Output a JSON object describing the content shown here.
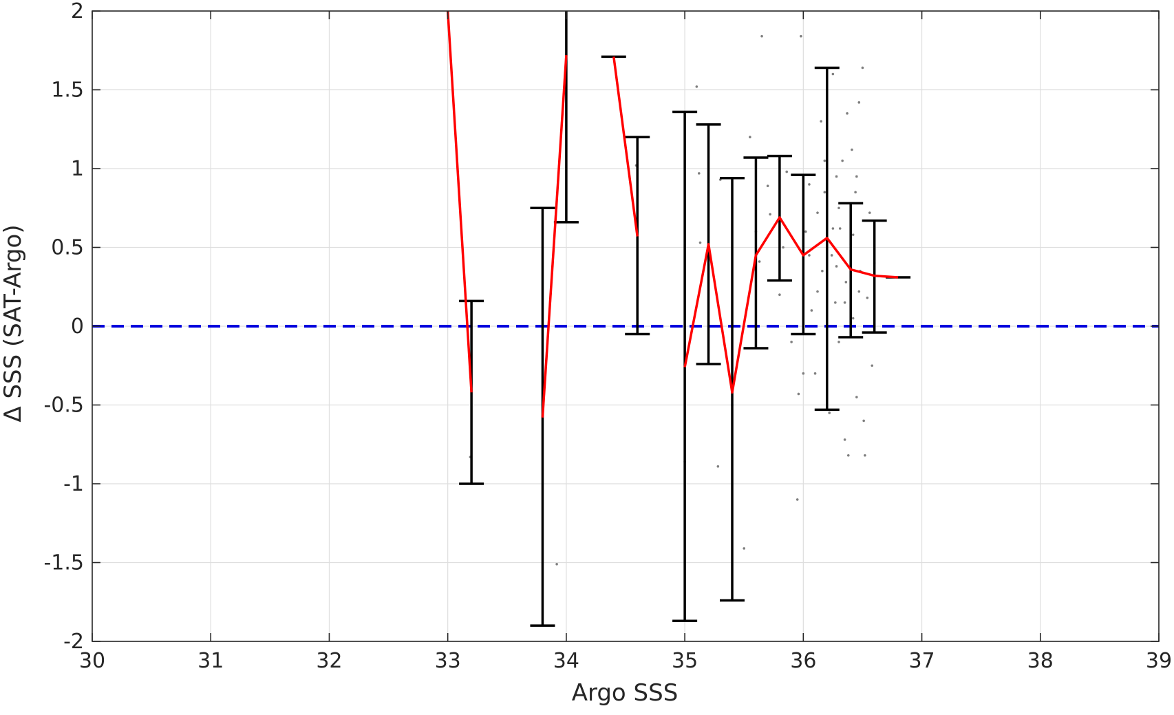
{
  "chart_data": {
    "type": "line",
    "title": "",
    "xlabel": "Argo SSS",
    "ylabel": "Δ SSS (SAT-Argo)",
    "xlim": [
      30,
      39
    ],
    "ylim": [
      -2,
      2
    ],
    "xticks": [
      30,
      31,
      32,
      33,
      34,
      35,
      36,
      37,
      38,
      39
    ],
    "yticks": [
      -2,
      -1.5,
      -1,
      -0.5,
      0,
      0.5,
      1,
      1.5,
      2
    ],
    "xtick_labels": [
      "30",
      "31",
      "32",
      "33",
      "34",
      "35",
      "36",
      "37",
      "38",
      "39"
    ],
    "ytick_labels": [
      "-2",
      "-1.5",
      "-1",
      "-0.5",
      "0",
      "0.5",
      "1",
      "1.5",
      "2"
    ],
    "grid": true,
    "colors": {
      "mean_line": "#ff0000",
      "error_bars": "#000000",
      "zero_line": "#0000dd",
      "scatter": "#7f7f7f",
      "grid": "#dedede",
      "axes": "#262626"
    },
    "reference_line": {
      "y": 0,
      "style": "dashed"
    },
    "mean_segments": [
      [
        [
          33.0,
          2.0
        ],
        [
          33.2,
          -0.42
        ]
      ],
      [
        [
          33.8,
          -0.58
        ],
        [
          34.0,
          1.72
        ]
      ],
      [
        [
          34.4,
          1.71
        ],
        [
          34.6,
          0.57
        ]
      ],
      [
        [
          35.0,
          -0.26
        ],
        [
          35.2,
          0.52
        ],
        [
          35.4,
          -0.42
        ],
        [
          35.6,
          0.45
        ],
        [
          35.8,
          0.69
        ],
        [
          36.0,
          0.45
        ],
        [
          36.2,
          0.56
        ],
        [
          36.4,
          0.36
        ],
        [
          36.6,
          0.32
        ],
        [
          36.8,
          0.31
        ]
      ]
    ],
    "error_bars": [
      {
        "x": 33.2,
        "low": -1.0,
        "high": 0.16
      },
      {
        "x": 33.8,
        "low": -1.9,
        "high": 0.75
      },
      {
        "x": 34.0,
        "low": 0.66,
        "high": 2.0,
        "cap_low_only": true
      },
      {
        "x": 34.4,
        "low": 1.71,
        "high": 1.71,
        "cap_only": true
      },
      {
        "x": 34.6,
        "low": -0.05,
        "high": 1.2
      },
      {
        "x": 35.0,
        "low": -1.87,
        "high": 1.36
      },
      {
        "x": 35.2,
        "low": -0.24,
        "high": 1.28
      },
      {
        "x": 35.4,
        "low": -1.74,
        "high": 0.94
      },
      {
        "x": 35.6,
        "low": -0.14,
        "high": 1.07
      },
      {
        "x": 35.8,
        "low": 0.29,
        "high": 1.08
      },
      {
        "x": 36.0,
        "low": -0.05,
        "high": 0.96
      },
      {
        "x": 36.2,
        "low": -0.53,
        "high": 1.64
      },
      {
        "x": 36.4,
        "low": -0.07,
        "high": 0.78
      },
      {
        "x": 36.6,
        "low": -0.04,
        "high": 0.67
      },
      {
        "x": 36.8,
        "low": 0.31,
        "high": 0.31,
        "cap_only": true
      }
    ],
    "scatter_points": [
      [
        33.19,
        -0.83
      ],
      [
        33.92,
        -1.51
      ],
      [
        34.59,
        1.02
      ],
      [
        35.0,
        -0.86
      ],
      [
        35.1,
        1.52
      ],
      [
        35.12,
        0.97
      ],
      [
        35.13,
        0.53
      ],
      [
        35.28,
        -0.89
      ],
      [
        35.3,
        0.93
      ],
      [
        35.4,
        -0.5
      ],
      [
        35.5,
        -1.41
      ],
      [
        35.55,
        1.2
      ],
      [
        35.6,
        0.6
      ],
      [
        35.63,
        0.41
      ],
      [
        35.65,
        1.84
      ],
      [
        35.7,
        0.89
      ],
      [
        35.72,
        0.71
      ],
      [
        35.8,
        0.2
      ],
      [
        35.83,
        0.5
      ],
      [
        35.86,
        0.98
      ],
      [
        35.9,
        -0.1
      ],
      [
        35.95,
        -1.1
      ],
      [
        35.96,
        -0.43
      ],
      [
        35.98,
        1.84
      ],
      [
        36.0,
        -0.3
      ],
      [
        36.02,
        0.6
      ],
      [
        36.05,
        0.9
      ],
      [
        36.07,
        0.1
      ],
      [
        36.1,
        -0.3
      ],
      [
        36.12,
        0.72
      ],
      [
        36.15,
        1.3
      ],
      [
        36.16,
        0.35
      ],
      [
        36.18,
        0.85
      ],
      [
        36.2,
        1.2
      ],
      [
        36.22,
        -0.55
      ],
      [
        36.24,
        0.45
      ],
      [
        36.25,
        1.6
      ],
      [
        36.27,
        0.15
      ],
      [
        36.28,
        0.95
      ],
      [
        36.3,
        -0.1
      ],
      [
        36.31,
        0.62
      ],
      [
        36.33,
        1.05
      ],
      [
        36.35,
        -0.72
      ],
      [
        36.36,
        0.28
      ],
      [
        36.37,
        1.35
      ],
      [
        36.38,
        -0.82
      ],
      [
        36.4,
        0.52
      ],
      [
        36.41,
        1.12
      ],
      [
        36.42,
        0.05
      ],
      [
        36.44,
        0.85
      ],
      [
        36.45,
        -0.45
      ],
      [
        36.47,
        1.42
      ],
      [
        36.48,
        0.35
      ],
      [
        36.5,
        1.64
      ],
      [
        36.51,
        -0.6
      ],
      [
        36.52,
        -0.82
      ],
      [
        36.54,
        0.18
      ],
      [
        36.56,
        0.72
      ],
      [
        36.58,
        -0.25
      ],
      [
        36.6,
        0.4
      ],
      [
        36.45,
        0.95
      ],
      [
        36.3,
        0.75
      ],
      [
        36.12,
        0.22
      ],
      [
        36.05,
        0.45
      ],
      [
        36.35,
        0.15
      ],
      [
        36.25,
        0.62
      ],
      [
        36.18,
        1.05
      ],
      [
        36.42,
        0.58
      ],
      [
        36.47,
        0.22
      ],
      [
        36.28,
        0.38
      ]
    ]
  }
}
